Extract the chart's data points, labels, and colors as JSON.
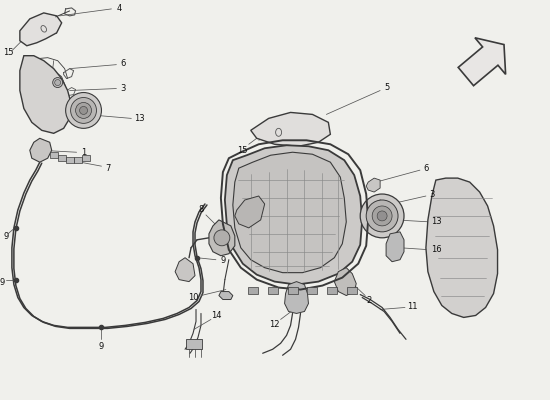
{
  "background_color": "#f0f0ec",
  "line_color": "#3a3a3a",
  "figsize": [
    5.5,
    4.0
  ],
  "dpi": 100,
  "label_fontsize": 6.0,
  "callout_lw": 0.55,
  "part_lw": 0.9,
  "wire_lw": 1.1,
  "parts": {
    "trim_left": {
      "fill": "#e0dedd",
      "edge": "#3a3a3a"
    },
    "housing_left": {
      "fill": "#d8d6d4",
      "edge": "#3a3a3a"
    },
    "trim_center": {
      "fill": "#dddbd9",
      "edge": "#3a3a3a"
    },
    "lamp_center": {
      "fill": "#d2d0ce",
      "edge": "#2a2a2a"
    },
    "panel_right": {
      "fill": "#d0cecc",
      "edge": "#3a3a3a"
    },
    "speaker": {
      "fill": "#b8b6b4",
      "edge": "#3a3a3a"
    },
    "wire": "#3a3a3a",
    "mount": "#888886"
  }
}
